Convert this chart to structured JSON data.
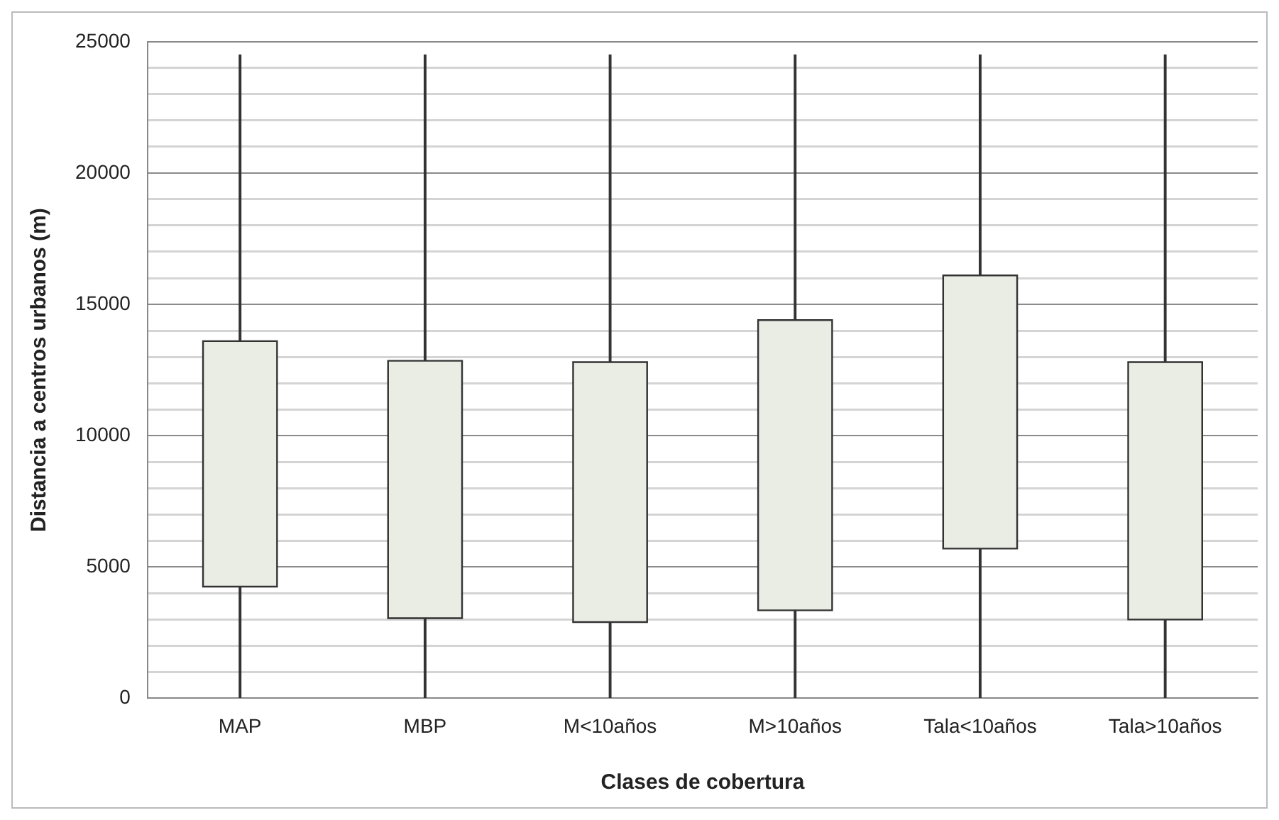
{
  "chart_data": {
    "type": "box",
    "xlabel": "Clases de cobertura",
    "ylabel": "Distancia a centros urbanos (m)",
    "categories": [
      "MAP",
      "MBP",
      "M<10años",
      "M>10años",
      "Tala<10años",
      "Tala>10años"
    ],
    "boxes": [
      {
        "low": 0,
        "q1": 4250,
        "q3": 13600,
        "high": 24500
      },
      {
        "low": 0,
        "q1": 3050,
        "q3": 12850,
        "high": 24500
      },
      {
        "low": 0,
        "q1": 2900,
        "q3": 12800,
        "high": 24500
      },
      {
        "low": 0,
        "q1": 3350,
        "q3": 14400,
        "high": 24500
      },
      {
        "low": 0,
        "q1": 5700,
        "q3": 16100,
        "high": 24500
      },
      {
        "low": 0,
        "q1": 3000,
        "q3": 12800,
        "high": 24500
      }
    ],
    "color": "#e9ede4",
    "ylim": [
      0,
      25000
    ],
    "yticks": [
      0,
      {
        "value": 1000,
        "label": null
      },
      {
        "value": 2000,
        "label": null
      },
      {
        "value": 3000,
        "label": null
      },
      {
        "value": 4000,
        "label": null
      },
      5000,
      {
        "value": 6000,
        "label": null
      },
      {
        "value": 7000,
        "label": null
      },
      {
        "value": 8000,
        "label": null
      },
      {
        "value": 9000,
        "label": null
      },
      10000,
      {
        "value": 11000,
        "label": null
      },
      {
        "value": 12000,
        "label": null
      },
      {
        "value": 13000,
        "label": null
      },
      {
        "value": 14000,
        "label": null
      },
      15000,
      {
        "value": 16000,
        "label": null
      },
      {
        "value": 17000,
        "label": null
      },
      {
        "value": 18000,
        "label": null
      },
      {
        "value": 19000,
        "label": null
      },
      20000,
      {
        "value": 21000,
        "label": null
      },
      {
        "value": 22000,
        "label": null
      },
      {
        "value": 23000,
        "label": null
      },
      {
        "value": 24000,
        "label": null
      },
      25000
    ],
    "grid": "y",
    "legend": false
  }
}
